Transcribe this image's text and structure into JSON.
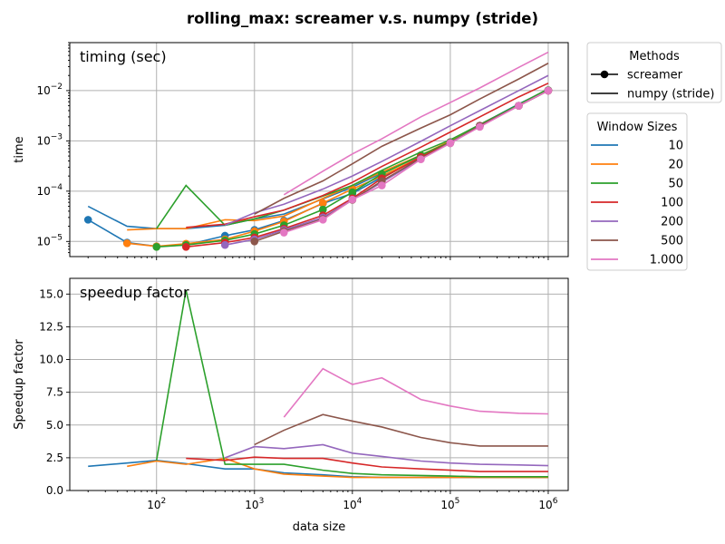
{
  "figure": {
    "title": "rolling_max:  screamer v.s. numpy (stride)"
  },
  "chart_data": [
    {
      "type": "line",
      "panel_label": "timing (sec)",
      "ylabel": "time",
      "xlabel": "",
      "xscale": "log",
      "yscale": "log",
      "xlim": [
        13,
        1600000
      ],
      "ylim": [
        5e-06,
        0.09
      ],
      "x_tick_values": [
        100,
        1000,
        10000,
        100000,
        1000000
      ],
      "y_tick_labels": [
        {
          "base": "10",
          "exp": "−5",
          "value": 1e-05
        },
        {
          "base": "10",
          "exp": "−4",
          "value": 0.0001
        },
        {
          "base": "10",
          "exp": "−3",
          "value": 0.001
        },
        {
          "base": "10",
          "exp": "−2",
          "value": 0.01
        }
      ],
      "grid": true,
      "series": [
        {
          "name": "10",
          "method": "screamer",
          "color": "#1f77b4",
          "x": [
            20,
            50,
            100,
            200,
            500,
            1000,
            2000,
            5000,
            10000,
            20000,
            50000,
            100000,
            200000,
            500000,
            1000000
          ],
          "y": [
            2.7e-05,
            9.5e-06,
            8e-06,
            8.5e-06,
            1.3e-05,
            1.7e-05,
            2.6e-05,
            5.7e-05,
            9e-05,
            0.00019,
            0.00046,
            0.00093,
            0.002,
            0.005,
            0.01
          ]
        },
        {
          "name": "10",
          "method": "numpy (stride)",
          "color": "#1f77b4",
          "x": [
            20,
            50,
            100,
            200,
            500,
            1000,
            2000,
            5000,
            10000,
            20000,
            50000,
            100000,
            200000,
            500000,
            1000000
          ],
          "y": [
            5e-05,
            2e-05,
            1.8e-05,
            1.8e-05,
            2.1e-05,
            2.8e-05,
            3.5e-05,
            7e-05,
            0.00012,
            0.00023,
            0.0005,
            0.001,
            0.0021,
            0.0054,
            0.0105
          ]
        },
        {
          "name": "20",
          "method": "screamer",
          "color": "#ff7f0e",
          "x": [
            50,
            100,
            200,
            500,
            1000,
            2000,
            5000,
            10000,
            20000,
            50000,
            100000,
            200000,
            500000,
            1000000
          ],
          "y": [
            9.2e-06,
            8e-06,
            9e-06,
            1.1e-05,
            1.6e-05,
            2.5e-05,
            5.8e-05,
            0.00011,
            0.0002,
            0.00048,
            0.00094,
            0.002,
            0.005,
            0.01
          ]
        },
        {
          "name": "20",
          "method": "numpy (stride)",
          "color": "#ff7f0e",
          "x": [
            50,
            100,
            200,
            500,
            1000,
            2000,
            5000,
            10000,
            20000,
            50000,
            100000,
            200000,
            500000,
            1000000
          ],
          "y": [
            1.7e-05,
            1.8e-05,
            1.8e-05,
            2.7e-05,
            2.6e-05,
            3.2e-05,
            7.2e-05,
            0.00013,
            0.00024,
            0.00052,
            0.001,
            0.0021,
            0.0052,
            0.0105
          ]
        },
        {
          "name": "50",
          "method": "screamer",
          "color": "#2ca02c",
          "x": [
            100,
            200,
            500,
            1000,
            2000,
            5000,
            10000,
            20000,
            50000,
            100000,
            200000,
            500000,
            1000000
          ],
          "y": [
            7.8e-06,
            8.5e-06,
            1.05e-05,
            1.4e-05,
            2.1e-05,
            4.3e-05,
            9.5e-05,
            0.00022,
            0.00052,
            0.00095,
            0.002,
            0.005,
            0.0102
          ]
        },
        {
          "name": "50",
          "method": "numpy (stride)",
          "color": "#2ca02c",
          "x": [
            100,
            200,
            500,
            1000,
            2000,
            5000,
            10000,
            20000,
            50000,
            100000,
            200000,
            500000,
            1000000
          ],
          "y": [
            1.8e-05,
            0.00013,
            2.1e-05,
            2.8e-05,
            4.2e-05,
            8e-05,
            0.00013,
            0.00026,
            0.0006,
            0.00105,
            0.0021,
            0.0053,
            0.0108
          ]
        },
        {
          "name": "100",
          "method": "screamer",
          "color": "#d62728",
          "x": [
            200,
            500,
            1000,
            2000,
            5000,
            10000,
            20000,
            50000,
            100000,
            200000,
            500000,
            1000000
          ],
          "y": [
            7.8e-06,
            9.5e-06,
            1.2e-05,
            1.8e-05,
            3.3e-05,
            7.2e-05,
            0.00018,
            0.00048,
            0.00092,
            0.002,
            0.005,
            0.01
          ]
        },
        {
          "name": "100",
          "method": "numpy (stride)",
          "color": "#d62728",
          "x": [
            200,
            500,
            1000,
            2000,
            5000,
            10000,
            20000,
            50000,
            100000,
            200000,
            500000,
            1000000
          ],
          "y": [
            1.9e-05,
            2.2e-05,
            3.1e-05,
            4.2e-05,
            8.2e-05,
            0.00015,
            0.00031,
            0.00075,
            0.0015,
            0.003,
            0.0075,
            0.014
          ]
        },
        {
          "name": "200",
          "method": "screamer",
          "color": "#9467bd",
          "x": [
            500,
            1000,
            2000,
            5000,
            10000,
            20000,
            50000,
            100000,
            200000,
            500000,
            1000000
          ],
          "y": [
            8.5e-06,
            1.1e-05,
            1.7e-05,
            3e-05,
            6.8e-05,
            0.00015,
            0.00044,
            0.00092,
            0.002,
            0.005,
            0.01
          ]
        },
        {
          "name": "200",
          "method": "numpy (stride)",
          "color": "#9467bd",
          "x": [
            500,
            1000,
            2000,
            5000,
            10000,
            20000,
            50000,
            100000,
            200000,
            500000,
            1000000
          ],
          "y": [
            2.1e-05,
            3.7e-05,
            5.5e-05,
            0.00011,
            0.0002,
            0.00039,
            0.00098,
            0.002,
            0.004,
            0.01,
            0.02
          ]
        },
        {
          "name": "500",
          "method": "screamer",
          "color": "#8c564b",
          "x": [
            1000,
            2000,
            5000,
            10000,
            20000,
            50000,
            100000,
            200000,
            500000,
            1000000
          ],
          "y": [
            1e-05,
            1.6e-05,
            2.8e-05,
            6.7e-05,
            0.00016,
            0.00045,
            0.0009,
            0.002,
            0.005,
            0.01
          ]
        },
        {
          "name": "500",
          "method": "numpy (stride)",
          "color": "#8c564b",
          "x": [
            1000,
            2000,
            5000,
            10000,
            20000,
            50000,
            100000,
            200000,
            500000,
            1000000
          ],
          "y": [
            3.5e-05,
            7.2e-05,
            0.00016,
            0.00035,
            0.00078,
            0.0018,
            0.0033,
            0.0068,
            0.017,
            0.035
          ]
        },
        {
          "name": "1.000",
          "method": "screamer",
          "color": "#e377c2",
          "x": [
            2000,
            5000,
            10000,
            20000,
            50000,
            100000,
            200000,
            500000,
            1000000
          ],
          "y": [
            1.5e-05,
            2.7e-05,
            6.8e-05,
            0.00013,
            0.00043,
            0.0009,
            0.0019,
            0.005,
            0.01
          ]
        },
        {
          "name": "1.000",
          "method": "numpy (stride)",
          "color": "#e377c2",
          "x": [
            2000,
            5000,
            10000,
            20000,
            50000,
            100000,
            200000,
            500000,
            1000000
          ],
          "y": [
            8.5e-05,
            0.00025,
            0.00055,
            0.0011,
            0.003,
            0.0058,
            0.0113,
            0.029,
            0.058
          ]
        }
      ]
    },
    {
      "type": "line",
      "panel_label": "speedup factor",
      "ylabel": "Speedup factor",
      "xlabel": "data size",
      "xscale": "log",
      "yscale": "linear",
      "xlim": [
        13,
        1600000
      ],
      "ylim": [
        0,
        16.2
      ],
      "x_tick_labels": [
        {
          "base": "10",
          "exp": "2",
          "value": 100
        },
        {
          "base": "10",
          "exp": "3",
          "value": 1000
        },
        {
          "base": "10",
          "exp": "4",
          "value": 10000
        },
        {
          "base": "10",
          "exp": "5",
          "value": 100000
        },
        {
          "base": "10",
          "exp": "6",
          "value": 1000000
        }
      ],
      "y_tick_labels": [
        "0.0",
        "2.5",
        "5.0",
        "7.5",
        "10.0",
        "12.5",
        "15.0"
      ],
      "y_tick_values": [
        0,
        2.5,
        5,
        7.5,
        10,
        12.5,
        15
      ],
      "grid": true,
      "series": [
        {
          "name": "10",
          "color": "#1f77b4",
          "x": [
            20,
            50,
            100,
            200,
            500,
            1000,
            2000,
            5000,
            10000,
            20000,
            50000,
            100000,
            200000,
            500000,
            1000000
          ],
          "y": [
            1.85,
            2.1,
            2.3,
            2.05,
            1.65,
            1.65,
            1.35,
            1.2,
            1.05,
            1.0,
            1.0,
            1.0,
            1.0,
            1.0,
            1.0
          ]
        },
        {
          "name": "20",
          "color": "#ff7f0e",
          "x": [
            50,
            100,
            200,
            500,
            1000,
            2000,
            5000,
            10000,
            20000,
            50000,
            100000,
            200000,
            500000,
            1000000
          ],
          "y": [
            1.85,
            2.25,
            2.0,
            2.45,
            1.65,
            1.25,
            1.1,
            1.0,
            1.0,
            1.0,
            1.0,
            1.0,
            1.0,
            1.0
          ]
        },
        {
          "name": "50",
          "color": "#2ca02c",
          "x": [
            100,
            200,
            500,
            1000,
            2000,
            5000,
            10000,
            20000,
            50000,
            100000,
            200000,
            500000,
            1000000
          ],
          "y": [
            2.3,
            15.3,
            2.0,
            2.0,
            2.0,
            1.55,
            1.3,
            1.2,
            1.15,
            1.1,
            1.05,
            1.05,
            1.05
          ]
        },
        {
          "name": "100",
          "color": "#d62728",
          "x": [
            200,
            500,
            1000,
            2000,
            5000,
            10000,
            20000,
            50000,
            100000,
            200000,
            500000,
            1000000
          ],
          "y": [
            2.45,
            2.3,
            2.55,
            2.45,
            2.45,
            2.1,
            1.8,
            1.65,
            1.55,
            1.45,
            1.45,
            1.45
          ]
        },
        {
          "name": "200",
          "color": "#9467bd",
          "x": [
            500,
            1000,
            2000,
            5000,
            10000,
            20000,
            50000,
            100000,
            200000,
            500000,
            1000000
          ],
          "y": [
            2.5,
            3.35,
            3.2,
            3.5,
            2.85,
            2.6,
            2.25,
            2.1,
            2.0,
            1.95,
            1.9
          ]
        },
        {
          "name": "500",
          "color": "#8c564b",
          "x": [
            1000,
            2000,
            5000,
            10000,
            20000,
            50000,
            100000,
            200000,
            500000,
            1000000
          ],
          "y": [
            3.5,
            4.6,
            5.8,
            5.3,
            4.85,
            4.05,
            3.65,
            3.4,
            3.4,
            3.4
          ]
        },
        {
          "name": "1.000",
          "color": "#e377c2",
          "x": [
            2000,
            5000,
            10000,
            20000,
            50000,
            100000,
            200000,
            500000,
            1000000
          ],
          "y": [
            5.6,
            9.3,
            8.1,
            8.6,
            6.95,
            6.45,
            6.05,
            5.9,
            5.85
          ]
        }
      ]
    }
  ],
  "legend_methods": {
    "title": "Methods",
    "entries": [
      {
        "label": "screamer",
        "marker": true
      },
      {
        "label": "numpy (stride)",
        "marker": false
      }
    ]
  },
  "legend_windows": {
    "title": "Window Sizes",
    "entries": [
      {
        "label": "10",
        "color": "#1f77b4"
      },
      {
        "label": "20",
        "color": "#ff7f0e"
      },
      {
        "label": "50",
        "color": "#2ca02c"
      },
      {
        "label": "100",
        "color": "#d62728"
      },
      {
        "label": "200",
        "color": "#9467bd"
      },
      {
        "label": "500",
        "color": "#8c564b"
      },
      {
        "label": "1.000",
        "color": "#e377c2"
      }
    ]
  }
}
